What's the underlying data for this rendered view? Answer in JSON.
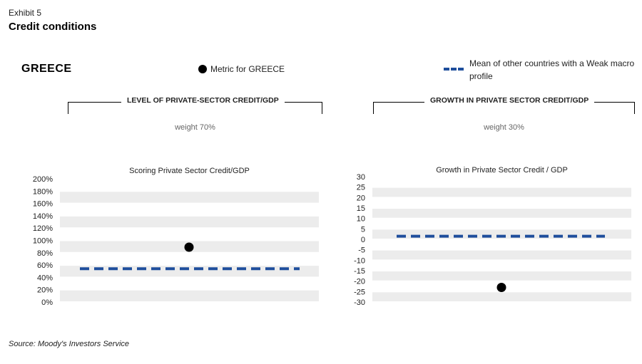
{
  "header": {
    "exhibit": "Exhibit 5",
    "title": "Credit conditions"
  },
  "country": "GREECE",
  "legend": {
    "metric_label": "Metric for GREECE",
    "mean_label": "Mean of other countries with a Weak macro profile"
  },
  "sections": [
    {
      "title": "LEVEL OF PRIVATE-SECTOR CREDIT/GDP",
      "weight": "weight 70%"
    },
    {
      "title": "GROWTH IN PRIVATE SECTOR CREDIT/GDP",
      "weight": "weight 30%"
    }
  ],
  "source": "Source: Moody's Investors Service",
  "colors": {
    "band": "#ececec",
    "mean_line": "#1f4e9c",
    "metric_dot": "#000000"
  },
  "chart_data": [
    {
      "type": "scatter",
      "title": "Scoring Private Sector Credit/GDP",
      "ylim": [
        0,
        200
      ],
      "yticks": [
        0,
        20,
        40,
        60,
        80,
        100,
        120,
        140,
        160,
        180,
        200
      ],
      "ytick_labels": [
        "0%",
        "20%",
        "40%",
        "60%",
        "80%",
        "100%",
        "120%",
        "140%",
        "160%",
        "180%",
        "200%"
      ],
      "grid": "horizontal bands",
      "metric": 89,
      "mean": 54
    },
    {
      "type": "scatter",
      "title": "Growth in Private Sector Credit / GDP",
      "ylim": [
        -30,
        30
      ],
      "yticks": [
        -30,
        -25,
        -20,
        -15,
        -10,
        -5,
        0,
        5,
        10,
        15,
        20,
        25,
        30
      ],
      "ytick_labels": [
        "-30",
        "-25",
        "-20",
        "-15",
        "-10",
        "-5",
        "0",
        "5",
        "10",
        "15",
        "20",
        "25",
        "30"
      ],
      "grid": "horizontal bands",
      "metric": -23,
      "mean": 1.5
    }
  ]
}
